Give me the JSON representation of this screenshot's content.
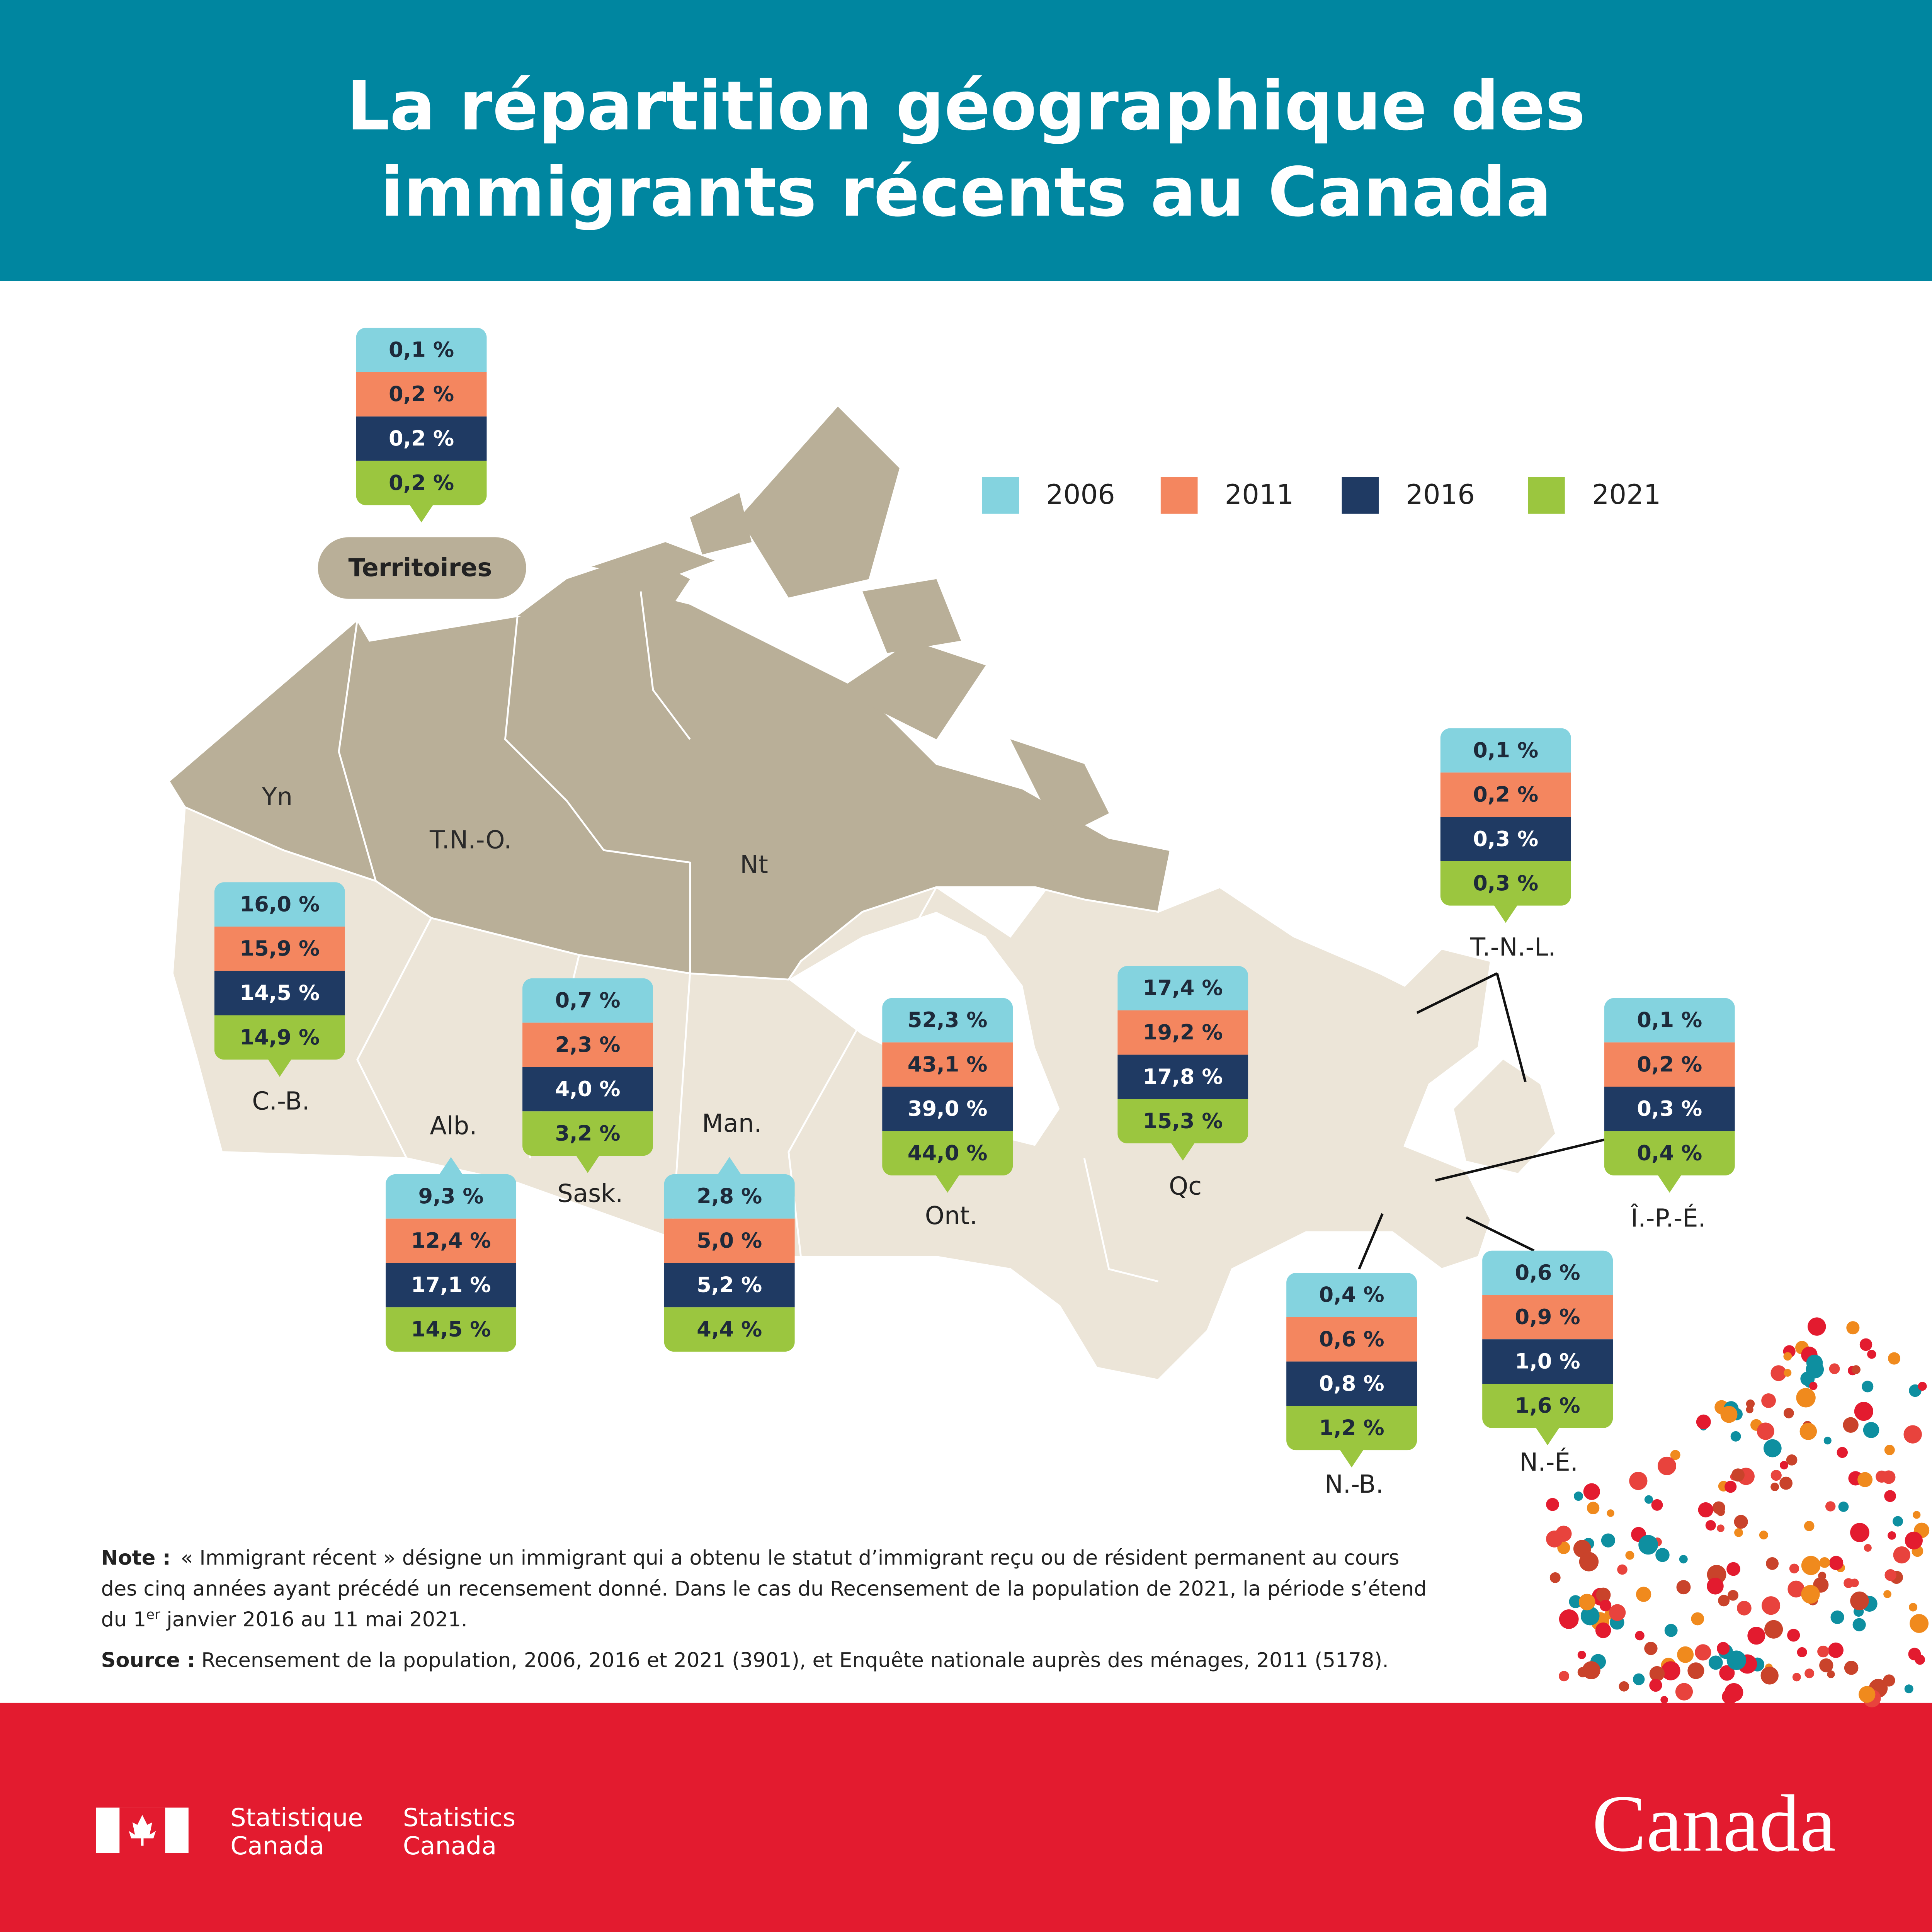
{
  "header": {
    "title": [
      "La répartition géographique des",
      "immigrants récents au Canada"
    ]
  },
  "legend": [
    {
      "label": "2006",
      "color": "#84d3df"
    },
    {
      "label": "2011",
      "color": "#f4865f"
    },
    {
      "label": "2016",
      "color": "#1f3a63"
    },
    {
      "label": "2021",
      "color": "#9bc63f"
    }
  ],
  "map_labels": [
    "Yn",
    "T.N.-O.",
    "Nt"
  ],
  "regions": [
    {
      "name": "Territoires",
      "values": [
        "0,1 %",
        "0,2 %",
        "0,2 %",
        "0,2 %"
      ]
    },
    {
      "name": "C.-B.",
      "values": [
        "16,0 %",
        "15,9 %",
        "14,5 %",
        "14,9 %"
      ]
    },
    {
      "name": "Alb.",
      "values": [
        "9,3 %",
        "12,4 %",
        "17,1 %",
        "14,5 %"
      ]
    },
    {
      "name": "Sask.",
      "values": [
        "0,7 %",
        "2,3 %",
        "4,0 %",
        "3,2 %"
      ]
    },
    {
      "name": "Man.",
      "values": [
        "2,8 %",
        "5,0 %",
        "5,2 %",
        "4,4 %"
      ]
    },
    {
      "name": "Ont.",
      "values": [
        "52,3 %",
        "43,1 %",
        "39,0 %",
        "44,0 %"
      ]
    },
    {
      "name": "Qc",
      "values": [
        "17,4 %",
        "19,2 %",
        "17,8 %",
        "15,3 %"
      ]
    },
    {
      "name": "T.-N.-L.",
      "values": [
        "0,1 %",
        "0,2 %",
        "0,3 %",
        "0,3 %"
      ]
    },
    {
      "name": "Î.-P.-É.",
      "values": [
        "0,1 %",
        "0,2 %",
        "0,3 %",
        "0,4 %"
      ]
    },
    {
      "name": "N.-B.",
      "values": [
        "0,4 %",
        "0,6 %",
        "0,8 %",
        "1,2 %"
      ]
    },
    {
      "name": "N.-É.",
      "values": [
        "0,6 %",
        "0,9 %",
        "1,0 %",
        "1,6 %"
      ]
    }
  ],
  "note": {
    "label": "Note :",
    "lines": [
      "« Immigrant récent » désigne un immigrant qui a obtenu le statut d’immigrant reçu ou de résident permanent au cours",
      "des cinq années ayant précédé un recensement donné. Dans le cas du Recensement de la population de 2021, la période s’étend",
      "du 1"
    ],
    "superscript": "er",
    "after": " janvier 2016 au 11 mai 2021."
  },
  "source": {
    "label": "Source :",
    "text": "Recensement de la population, 2006, 2016 et 2021 (3901), et Enquête nationale auprès des ménages, 2011 (5178)."
  },
  "footer": {
    "fr": [
      "Statistique",
      "Canada"
    ],
    "en": [
      "Statistics",
      "Canada"
    ],
    "wordmark": "Canada"
  }
}
